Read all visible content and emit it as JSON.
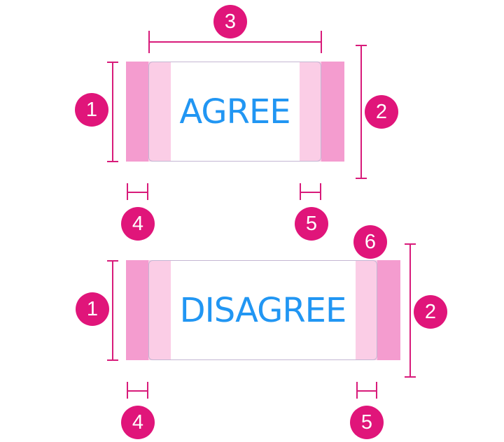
{
  "colors": {
    "margin_band": "#f49ccf",
    "padding_band": "#fbcde6",
    "frame_border": "#c4b6d3",
    "label_text": "#2196f3",
    "dimension_line": "#d81b7a",
    "badge_fill": "#e0157a",
    "badge_text": "#ffffff"
  },
  "buttons": {
    "agree": {
      "label": "AGREE"
    },
    "disagree": {
      "label": "DISAGREE"
    }
  },
  "callouts": {
    "agree": {
      "c1": "1",
      "c2": "2",
      "c3": "3",
      "c4": "4",
      "c5": "5"
    },
    "disagree": {
      "c1": "1",
      "c2": "2",
      "c4": "4",
      "c5": "5",
      "c6": "6"
    }
  }
}
